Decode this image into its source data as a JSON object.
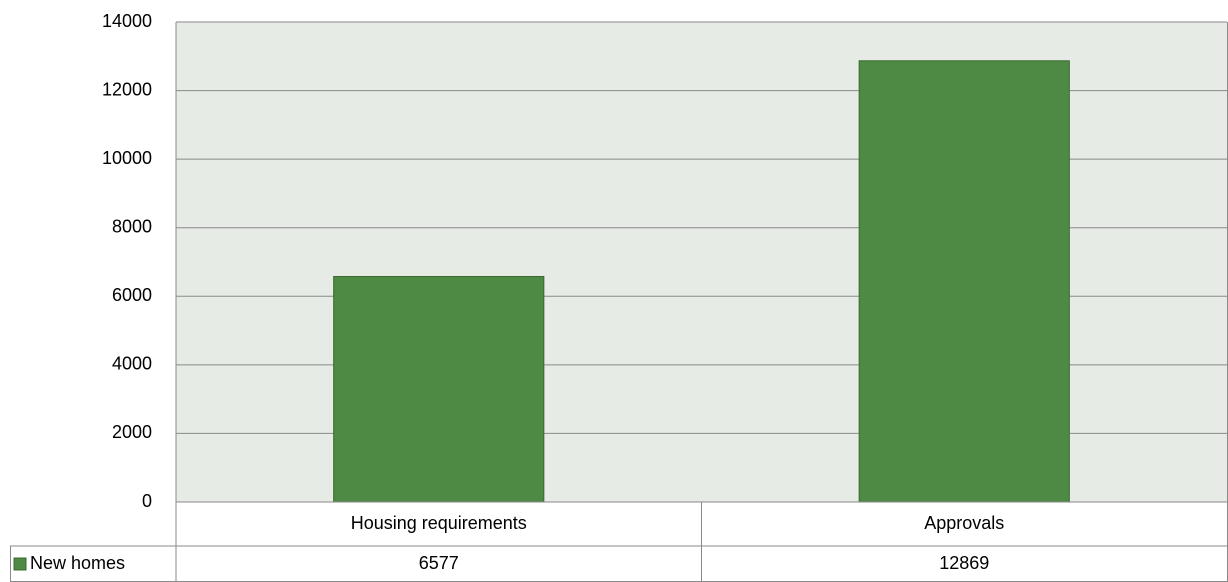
{
  "chart_data": {
    "type": "bar",
    "categories": [
      "Housing requirements",
      "Approvals"
    ],
    "series": [
      {
        "name": "New homes",
        "color": "#4e8a43",
        "values": [
          6577,
          12869
        ]
      }
    ],
    "ylim": [
      0,
      14000
    ],
    "yticks": [
      0,
      2000,
      4000,
      6000,
      8000,
      10000,
      12000,
      14000
    ],
    "grid": true,
    "data_table": true
  }
}
